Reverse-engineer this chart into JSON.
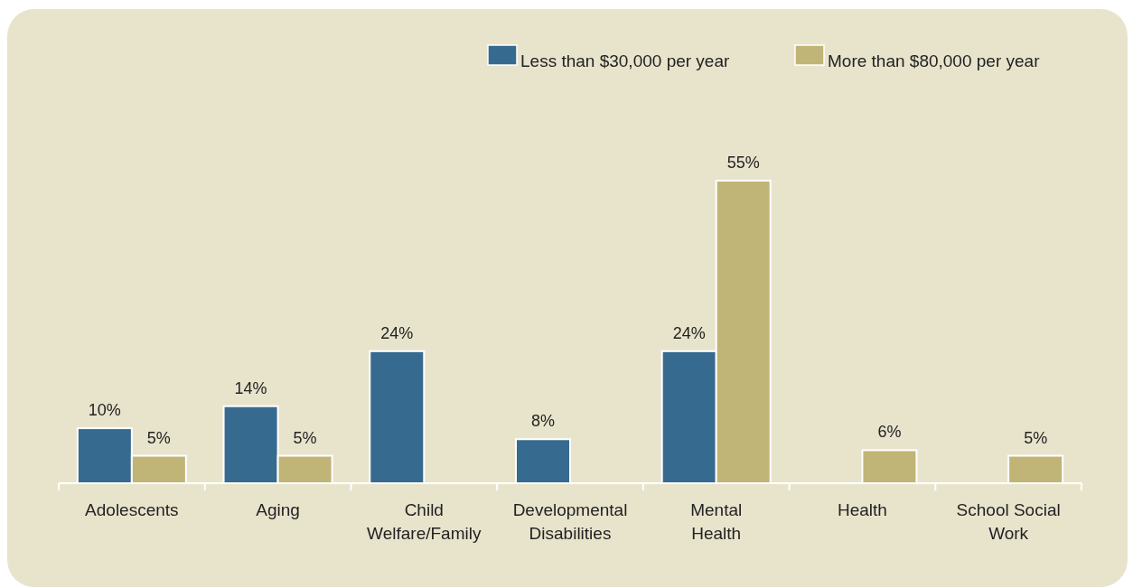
{
  "chart_data": {
    "type": "bar",
    "categories": [
      "Adolescents",
      "Aging",
      "Child Welfare/Family",
      "Developmental Disabilities",
      "Mental Health",
      "Health",
      "School Social Work"
    ],
    "series": [
      {
        "name": "Less than $30,000 per year",
        "color": "#376a8f",
        "values": [
          10,
          14,
          24,
          8,
          24,
          null,
          null
        ],
        "value_labels": [
          "10%",
          "14%",
          "24%",
          "8%",
          "24%",
          null,
          null
        ]
      },
      {
        "name": "More than $80,000 per year",
        "color": "#c0b577",
        "values": [
          5,
          5,
          null,
          null,
          55,
          6,
          5
        ],
        "value_labels": [
          "5%",
          "5%",
          null,
          null,
          "55%",
          "6%",
          "5%"
        ]
      }
    ],
    "legend": "top right"
  }
}
